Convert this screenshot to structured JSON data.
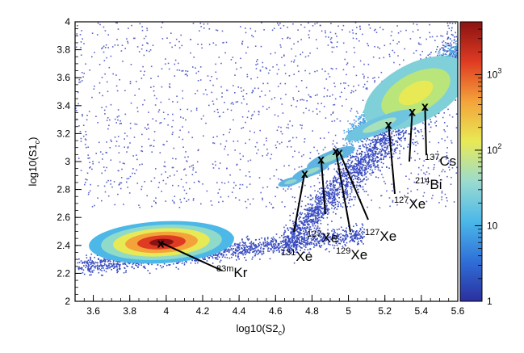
{
  "chart_data": {
    "type": "heatmap",
    "xlabel_main": "log10(S2",
    "xlabel_sub": "c",
    "xlabel_tail": ")",
    "ylabel_main": "log10(S1",
    "ylabel_sub": "c",
    "ylabel_tail": ")",
    "xlim": [
      3.5,
      5.6
    ],
    "ylim": [
      2.0,
      4.0
    ],
    "x_ticks": [
      3.6,
      3.8,
      4.0,
      4.2,
      4.4,
      4.6,
      4.8,
      5.0,
      5.2,
      5.4,
      5.6
    ],
    "x_tick_labels": [
      "3.6",
      "3.8",
      "4",
      "4.2",
      "4.4",
      "4.6",
      "4.8",
      "5",
      "5.2",
      "5.4",
      "5.6"
    ],
    "y_ticks": [
      2.0,
      2.2,
      2.4,
      2.6,
      2.8,
      3.0,
      3.2,
      3.4,
      3.6,
      3.8,
      4.0
    ],
    "y_tick_labels": [
      "2",
      "2.2",
      "2.4",
      "2.6",
      "2.8",
      "3",
      "3.2",
      "3.4",
      "3.6",
      "3.8",
      "4"
    ],
    "colorbar": {
      "scale": "log",
      "range": [
        1,
        5000
      ],
      "ticks": [
        1,
        10,
        100,
        1000
      ],
      "tick_labels": [
        {
          "base": "1",
          "exp": ""
        },
        {
          "base": "10",
          "exp": ""
        },
        {
          "base": "10",
          "exp": "2"
        },
        {
          "base": "10",
          "exp": "3"
        }
      ],
      "colors": [
        "#2b2f9e",
        "#2f6fd8",
        "#4bb8e8",
        "#9bdbd0",
        "#e8ea55",
        "#f4a33a",
        "#df3b22",
        "#8b1212"
      ]
    },
    "scatter_background": [
      {
        "region": "low-energy band",
        "x_range": [
          3.55,
          4.5
        ],
        "y_range": [
          2.0,
          2.8
        ]
      },
      {
        "region": "main diagonal band",
        "x_range": [
          4.3,
          5.6
        ],
        "y_range": [
          2.6,
          4.0
        ]
      },
      {
        "region": "upper diffuse",
        "x_range": [
          3.55,
          5.6
        ],
        "y_range": [
          2.8,
          4.0
        ]
      }
    ],
    "peaks": [
      {
        "id": "kr83m",
        "x": 3.97,
        "y": 2.42,
        "label_mass": "83m",
        "label_element": "Kr"
      },
      {
        "id": "xe131",
        "x": 4.76,
        "y": 2.92,
        "label_mass": "131",
        "label_element": "Xe"
      },
      {
        "id": "xe127a",
        "x": 4.85,
        "y": 3.02,
        "label_mass": "127",
        "label_element": "Xe"
      },
      {
        "id": "xe129",
        "x": 4.93,
        "y": 3.08,
        "label_mass": "129",
        "label_element": "Xe"
      },
      {
        "id": "xe127b",
        "x": 4.95,
        "y": 3.07,
        "label_mass": "127",
        "label_element": "Xe"
      },
      {
        "id": "xe127c",
        "x": 5.22,
        "y": 3.27,
        "label_mass": "127",
        "label_element": "Xe"
      },
      {
        "id": "bi214",
        "x": 5.35,
        "y": 3.36,
        "label_mass": "214",
        "label_element": "Bi"
      },
      {
        "id": "cs137",
        "x": 5.42,
        "y": 3.4,
        "label_mass": "137",
        "label_element": "Cs"
      }
    ],
    "marker_glyph": "x",
    "grid": false,
    "legend": "colorbar-right"
  }
}
